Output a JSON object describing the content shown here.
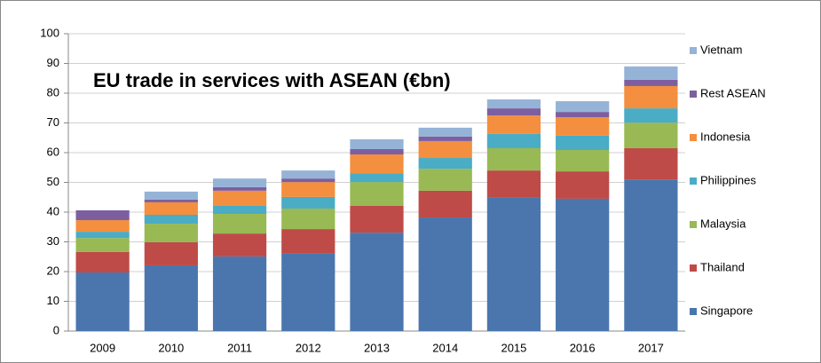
{
  "chart_data": {
    "type": "stacked_bar",
    "title": "EU trade in services with ASEAN (€bn)",
    "categories": [
      "2009",
      "2010",
      "2011",
      "2012",
      "2013",
      "2014",
      "2015",
      "2016",
      "2017"
    ],
    "series": [
      {
        "name": "Singapore",
        "color": "#4a76ad",
        "values": [
          19.7,
          22.1,
          25.1,
          26.0,
          33.1,
          38.2,
          44.8,
          44.5,
          51.0
        ]
      },
      {
        "name": "Thailand",
        "color": "#be4b48",
        "values": [
          6.9,
          7.8,
          7.7,
          8.3,
          9.0,
          9.0,
          9.2,
          9.2,
          10.5
        ]
      },
      {
        "name": "Malaysia",
        "color": "#98b954",
        "values": [
          4.7,
          6.2,
          6.6,
          6.9,
          8.0,
          7.4,
          7.5,
          7.2,
          8.6
        ]
      },
      {
        "name": "Philippines",
        "color": "#4aacc5",
        "values": [
          2.1,
          3.0,
          2.7,
          3.9,
          3.0,
          3.6,
          4.8,
          4.8,
          4.8
        ]
      },
      {
        "name": "Indonesia",
        "color": "#f38f3e",
        "values": [
          3.9,
          4.2,
          5.1,
          5.0,
          6.3,
          5.7,
          6.2,
          6.2,
          7.5
        ]
      },
      {
        "name": "Rest ASEAN",
        "color": "#7d5fa0",
        "values": [
          3.3,
          0.9,
          1.2,
          1.2,
          1.8,
          1.5,
          2.4,
          1.8,
          2.1
        ]
      },
      {
        "name": "Vietnam",
        "color": "#95b3d7",
        "values": [
          0,
          2.7,
          2.9,
          2.7,
          3.3,
          3.0,
          3.0,
          3.6,
          4.5
        ]
      }
    ],
    "ylim": [
      0,
      100
    ],
    "yticks": [
      0,
      10,
      20,
      30,
      40,
      50,
      60,
      70,
      80,
      90,
      100
    ],
    "grid": true,
    "legend": "right"
  }
}
